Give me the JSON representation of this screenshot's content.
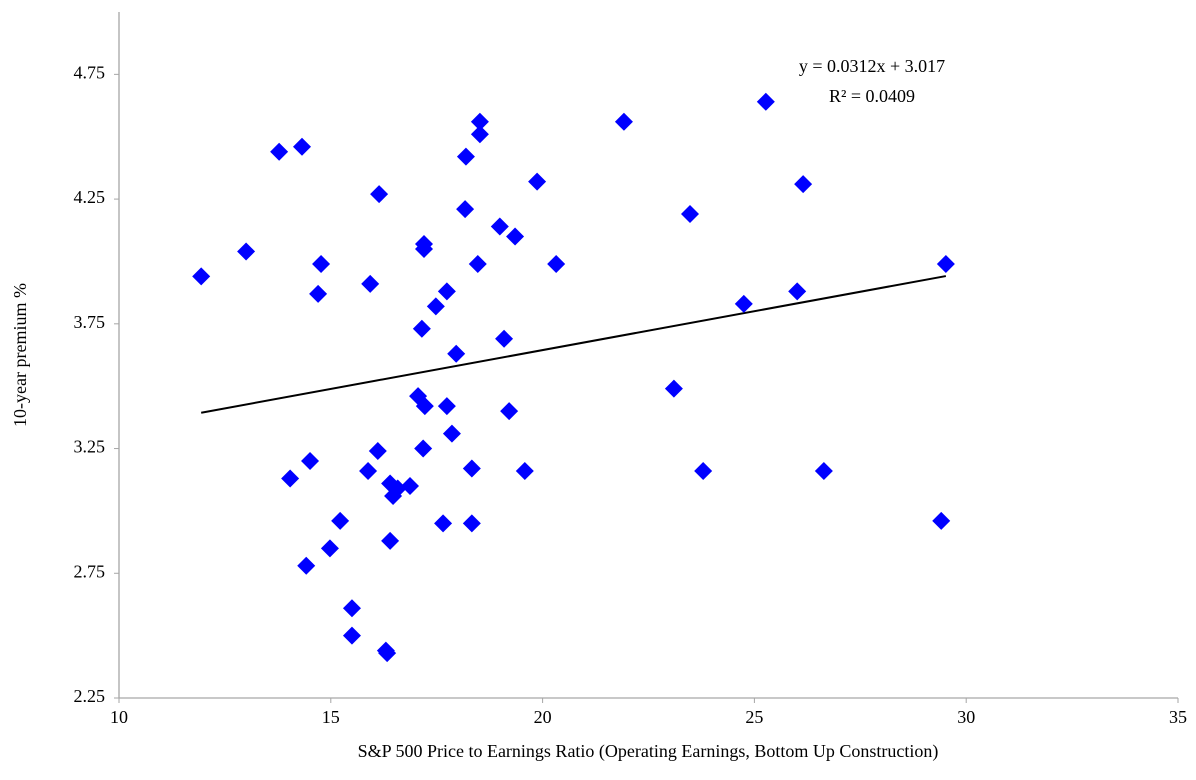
{
  "chart_data": {
    "type": "scatter",
    "x_label": "S&P 500 Price to Earnings Ratio (Operating Earnings, Bottom Up Construction)",
    "y_label": "10-year premium %",
    "color": "#0000ff",
    "x": [
      11.94,
      13.0,
      13.78,
      14.32,
      14.77,
      14.7,
      14.04,
      14.51,
      14.42,
      14.98,
      15.22,
      15.5,
      15.5,
      16.3,
      16.33,
      15.88,
      16.11,
      16.4,
      16.47,
      16.58,
      16.87,
      16.4,
      15.93,
      16.14,
      17.2,
      17.2,
      17.15,
      17.48,
      17.74,
      17.06,
      17.22,
      17.18,
      17.74,
      17.86,
      17.96,
      17.65,
      18.33,
      18.33,
      18.17,
      18.19,
      18.52,
      18.52,
      18.47,
      18.99,
      19.35,
      19.87,
      19.09,
      19.21,
      19.58,
      20.32,
      21.92,
      23.1,
      23.48,
      23.79,
      24.75,
      25.27,
      26.01,
      26.15,
      26.64,
      29.41,
      29.52
    ],
    "values": [
      3.94,
      4.04,
      4.44,
      4.46,
      3.99,
      3.87,
      3.13,
      3.2,
      2.78,
      2.85,
      2.96,
      2.61,
      2.5,
      2.44,
      2.43,
      3.16,
      3.24,
      3.11,
      3.06,
      3.09,
      3.1,
      2.88,
      3.91,
      4.27,
      4.07,
      4.05,
      3.73,
      3.82,
      3.88,
      3.46,
      3.42,
      3.25,
      3.42,
      3.31,
      3.63,
      2.95,
      2.95,
      3.17,
      4.21,
      4.42,
      4.51,
      4.56,
      3.99,
      4.14,
      4.1,
      4.32,
      3.69,
      3.4,
      3.16,
      3.99,
      4.56,
      3.49,
      4.19,
      3.16,
      3.83,
      4.64,
      3.88,
      4.31,
      3.16,
      2.96,
      3.99
    ],
    "trendline": {
      "equation": "y = 0.0312x + 3.017",
      "r_squared": "R² = 0.0409",
      "color": "#000000"
    },
    "xlim": [
      10,
      35
    ],
    "xticks": [
      10,
      15,
      20,
      25,
      30,
      35
    ],
    "ylim": [
      2.25,
      5.0
    ],
    "yticks": [
      2.25,
      2.75,
      3.25,
      3.75,
      4.25,
      4.75
    ],
    "grid": false
  }
}
